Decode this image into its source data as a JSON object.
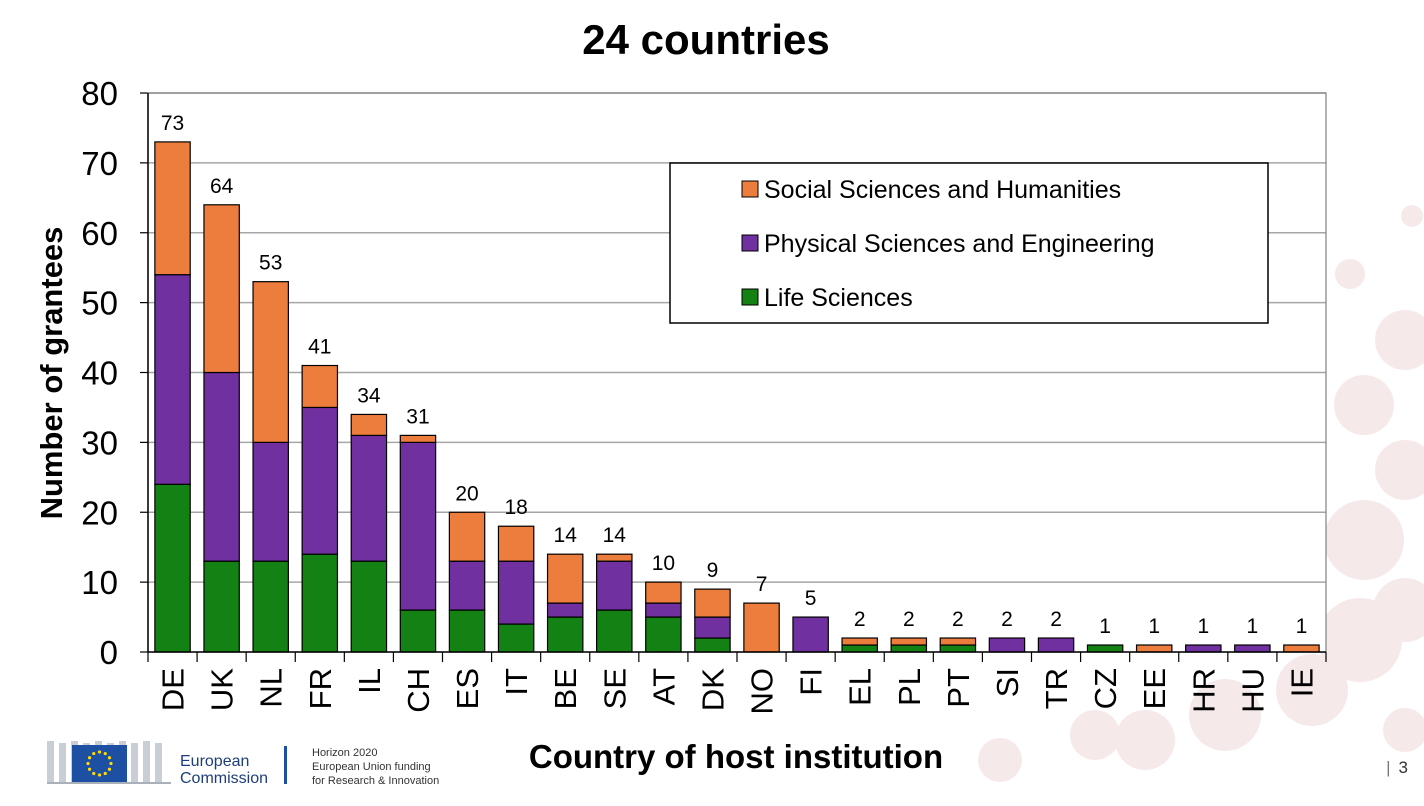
{
  "slide": {
    "page_number": "3",
    "footer": {
      "org_line1": "European",
      "org_line2": "Commission",
      "program_line1": "Horizon 2020",
      "program_line2": "European Union funding",
      "program_line3": "for Research & Innovation"
    }
  },
  "colors": {
    "social": "#ED7D3D",
    "physical": "#7030A0",
    "life": "#138113",
    "eu_blue": "#1D4FA3",
    "eu_yellow": "#FFDD00",
    "decor": "#F6E9EA"
  },
  "chart_data": {
    "type": "bar",
    "stacked": true,
    "title": "24 countries",
    "xlabel": "Country of host institution",
    "ylabel": "Number of grantees",
    "ylim": [
      0,
      80
    ],
    "yticks": [
      0,
      10,
      20,
      30,
      40,
      50,
      60,
      70,
      80
    ],
    "grid": true,
    "legend_position": "top-right",
    "categories": [
      "DE",
      "UK",
      "NL",
      "FR",
      "IL",
      "CH",
      "ES",
      "IT",
      "BE",
      "SE",
      "AT",
      "DK",
      "NO",
      "FI",
      "EL",
      "PL",
      "PT",
      "SI",
      "TR",
      "CZ",
      "EE",
      "HR",
      "HU",
      "IE"
    ],
    "series": [
      {
        "name": "Life Sciences",
        "color_key": "life",
        "values": [
          24,
          13,
          13,
          14,
          13,
          6,
          6,
          4,
          5,
          6,
          5,
          2,
          0,
          0,
          1,
          1,
          1,
          0,
          0,
          1,
          0,
          0,
          0,
          0
        ]
      },
      {
        "name": "Physical Sciences and Engineering",
        "color_key": "physical",
        "values": [
          30,
          27,
          17,
          21,
          18,
          24,
          7,
          9,
          2,
          7,
          2,
          3,
          0,
          5,
          0,
          0,
          0,
          2,
          2,
          0,
          0,
          1,
          1,
          0
        ]
      },
      {
        "name": "Social Sciences and Humanities",
        "color_key": "social",
        "values": [
          19,
          24,
          23,
          6,
          3,
          1,
          7,
          5,
          7,
          1,
          3,
          4,
          7,
          0,
          1,
          1,
          1,
          0,
          0,
          0,
          1,
          0,
          0,
          1
        ]
      }
    ],
    "legend_order": [
      "Social Sciences and Humanities",
      "Physical Sciences and Engineering",
      "Life Sciences"
    ],
    "totals": [
      73,
      64,
      53,
      41,
      34,
      31,
      20,
      18,
      14,
      14,
      10,
      9,
      7,
      5,
      2,
      2,
      2,
      2,
      2,
      1,
      1,
      1,
      1,
      1
    ]
  }
}
